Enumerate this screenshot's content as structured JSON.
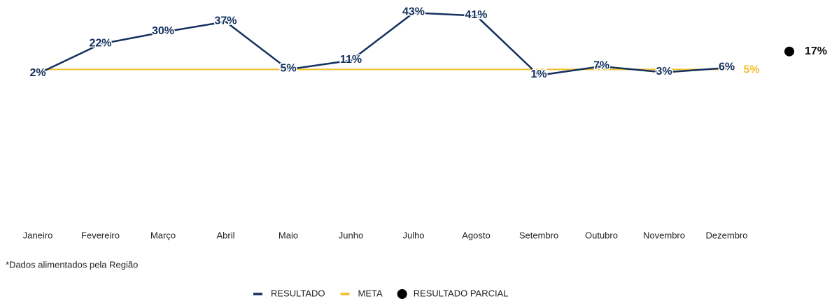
{
  "chart_data": {
    "type": "line",
    "categories": [
      "Janeiro",
      "Fevereiro",
      "Março",
      "Abril",
      "Maio",
      "Junho",
      "Julho",
      "Agosto",
      "Setembro",
      "Outubro",
      "Novembro",
      "Dezembro"
    ],
    "series": [
      {
        "name": "RESULTADO",
        "color": "#13305e",
        "values": [
          2,
          22,
          30,
          37,
          5,
          11,
          43,
          41,
          1,
          7,
          3,
          6
        ],
        "value_labels": [
          "2%",
          "22%",
          "30%",
          "37%",
          "5%",
          "11%",
          "43%",
          "41%",
          "1%",
          "7%",
          "3%",
          "6%"
        ]
      },
      {
        "name": "META",
        "color": "#f0bf2c",
        "values": [
          5,
          5,
          5,
          5,
          5,
          5,
          5,
          5,
          5,
          5,
          5,
          5
        ],
        "value_labels": [
          null,
          null,
          null,
          null,
          null,
          null,
          null,
          null,
          null,
          null,
          null,
          "5%"
        ]
      }
    ],
    "partial": {
      "name": "RESULTADO PARCIAL",
      "color": "#000000",
      "value": 17,
      "value_label": "17%"
    },
    "ylim": [
      0,
      45
    ],
    "note": "*Dados alimentados pela Região"
  }
}
